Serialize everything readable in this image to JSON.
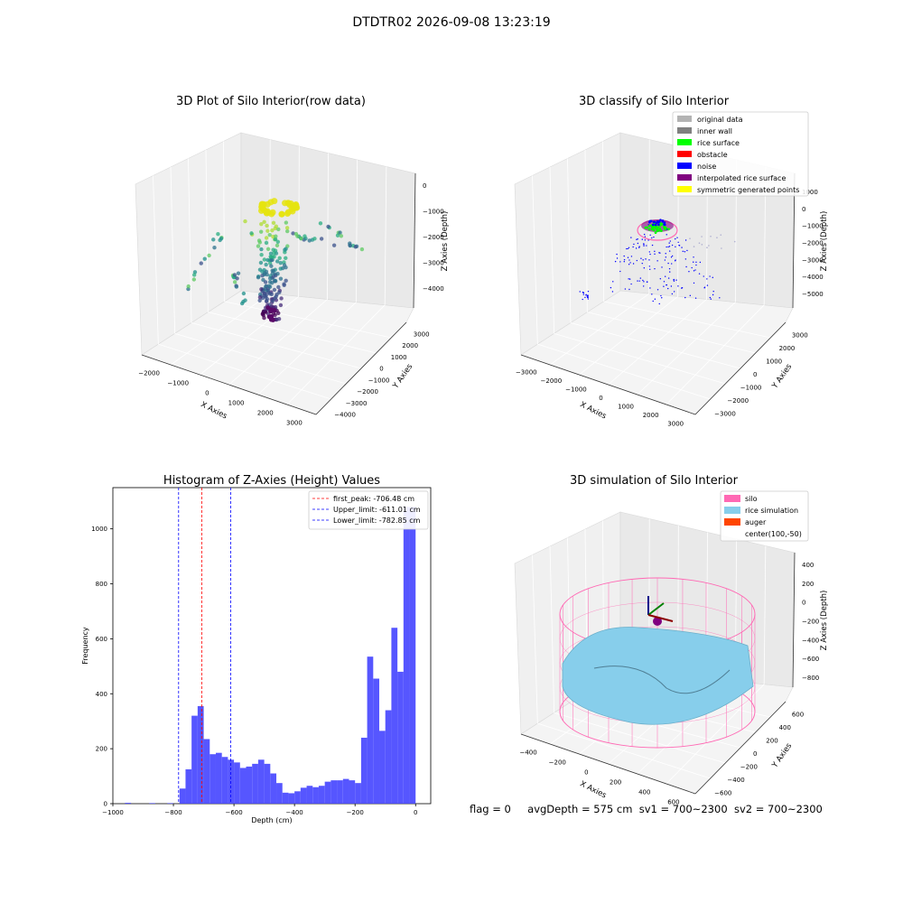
{
  "figure": {
    "suptitle": "DTDTR02 2026-09-08 13:23:19",
    "status": {
      "flag": "flag = 0",
      "avg_depth": "avgDepth = 575 cm",
      "sv1": "sv1 = 700~2300",
      "sv2": "sv2 = 700~2300"
    }
  },
  "colors": {
    "original_data": "#b3b3b3",
    "inner_wall": "#808080",
    "rice_surface": "#00ff00",
    "obstacle": "#ff0000",
    "noise": "#0000ff",
    "interpolated_rice_surface": "#800080",
    "symmetric_generated_points": "#ffff00",
    "silo": "#ff69b4",
    "rice_simulation": "#87ceeb",
    "auger": "#ff4500",
    "hist_bars": "#4d4dff",
    "pane": "#f2f2f2"
  },
  "chart_data": [
    {
      "type": "scatter",
      "projection": "3d",
      "title": "3D Plot of Silo Interior(row data)",
      "xlabel": "X Axies",
      "ylabel": "Y Axies",
      "zlabel": "Z Axies (Depth)",
      "xticks": [
        "−2000",
        "−1000",
        "0",
        "1000",
        "2000",
        "3000"
      ],
      "yticks": [
        "−4000",
        "−3000",
        "−2000",
        "−1000",
        "0",
        "1000",
        "2000",
        "3000"
      ],
      "zticks": [
        "0",
        "−1000",
        "−2000",
        "−3000",
        "−4000"
      ],
      "colormap": "viridis"
    },
    {
      "type": "scatter",
      "projection": "3d",
      "title": "3D classify of Silo Interior",
      "xlabel": "X Axies",
      "ylabel": "Y Axies",
      "zlabel": "Z Axies (Depth)",
      "xticks": [
        "−3000",
        "−2000",
        "−1000",
        "0",
        "1000",
        "2000",
        "3000"
      ],
      "yticks": [
        "−3000",
        "−2000",
        "−1000",
        "0",
        "1000",
        "2000",
        "3000"
      ],
      "zticks": [
        "1000",
        "0",
        "−1000",
        "−2000",
        "−3000",
        "−4000",
        "−5000"
      ],
      "legend": [
        "original data",
        "inner wall",
        "rice surface",
        "obstacle",
        "noise",
        "interpolated rice surface",
        "symmetric generated points"
      ],
      "legend_loc": "upper right"
    },
    {
      "type": "bar",
      "title": "Histogram of Z-Axies (Height) Values",
      "xlabel": "Depth (cm)",
      "ylabel": "Frequency",
      "xlim": [
        -1000,
        50
      ],
      "ylim": [
        0,
        1150
      ],
      "xticks": [
        "−1000",
        "−800",
        "−600",
        "−400",
        "−200",
        "0"
      ],
      "yticks": [
        "0",
        "200",
        "400",
        "600",
        "800",
        "1000"
      ],
      "bin_width": 20,
      "bins": [
        [
          -960,
          3
        ],
        [
          -880,
          2
        ],
        [
          -820,
          2
        ],
        [
          -780,
          55
        ],
        [
          -760,
          125
        ],
        [
          -740,
          320
        ],
        [
          -720,
          355
        ],
        [
          -700,
          235
        ],
        [
          -680,
          180
        ],
        [
          -660,
          185
        ],
        [
          -640,
          170
        ],
        [
          -620,
          160
        ],
        [
          -600,
          150
        ],
        [
          -580,
          130
        ],
        [
          -560,
          135
        ],
        [
          -540,
          145
        ],
        [
          -520,
          160
        ],
        [
          -500,
          145
        ],
        [
          -480,
          110
        ],
        [
          -460,
          75
        ],
        [
          -440,
          40
        ],
        [
          -420,
          38
        ],
        [
          -400,
          45
        ],
        [
          -380,
          58
        ],
        [
          -360,
          65
        ],
        [
          -340,
          60
        ],
        [
          -320,
          65
        ],
        [
          -300,
          80
        ],
        [
          -280,
          85
        ],
        [
          -260,
          85
        ],
        [
          -240,
          90
        ],
        [
          -220,
          85
        ],
        [
          -200,
          75
        ],
        [
          -180,
          240
        ],
        [
          -160,
          535
        ],
        [
          -140,
          455
        ],
        [
          -120,
          265
        ],
        [
          -100,
          340
        ],
        [
          -80,
          640
        ],
        [
          -60,
          480
        ],
        [
          -40,
          1080
        ],
        [
          -20,
          1080
        ]
      ],
      "vlines": [
        {
          "label": "first_peak: -706.48 cm",
          "x": -706.48,
          "color": "#ff0000"
        },
        {
          "label": "Upper_limit: -611.01 cm",
          "x": -611.01,
          "color": "#0000ff"
        },
        {
          "label": "Lower_limit: -782.85 cm",
          "x": -782.85,
          "color": "#0000ff"
        }
      ],
      "legend_loc": "upper right"
    },
    {
      "type": "surface",
      "projection": "3d",
      "title": "3D simulation of Silo Interior",
      "xlabel": "X Axies",
      "ylabel": "Y Axies",
      "zlabel": "Z Axies (Depth)",
      "xticks": [
        "−400",
        "−200",
        "0",
        "200",
        "400",
        "600"
      ],
      "yticks": [
        "−600",
        "−400",
        "−200",
        "0",
        "200",
        "400",
        "600"
      ],
      "zticks": [
        "400",
        "200",
        "0",
        "−200",
        "−400",
        "−600",
        "−800"
      ],
      "legend": [
        "silo",
        "rice simulation",
        "auger",
        "center(100,-50)"
      ],
      "legend_loc": "upper right"
    }
  ]
}
